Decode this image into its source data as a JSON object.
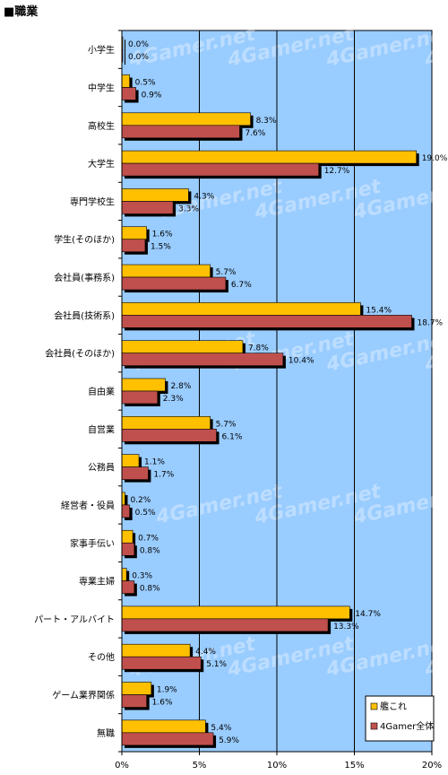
{
  "page_title": "■職業",
  "colors": {
    "plot_bg": "#99ccff",
    "series_1": "#ffc000",
    "series_2": "#c0504d",
    "shadow": "#000000",
    "grid": "#000000"
  },
  "chart_data": {
    "type": "bar",
    "orientation": "horizontal",
    "categories": [
      "小学生",
      "中学生",
      "高校生",
      "大学生",
      "専門学校生",
      "学生(そのほか)",
      "会社員(事務系)",
      "会社員(技術系)",
      "会社員(そのほか)",
      "自由業",
      "自営業",
      "公務員",
      "経営者・役員",
      "家事手伝い",
      "専業主婦",
      "パート・アルバイト",
      "その他",
      "ゲーム業界関係",
      "無職"
    ],
    "series": [
      {
        "name": "艦これ",
        "values": [
          0.0,
          0.5,
          8.3,
          19.0,
          4.3,
          1.6,
          5.7,
          15.4,
          7.8,
          2.8,
          5.7,
          1.1,
          0.2,
          0.7,
          0.3,
          14.7,
          4.4,
          1.9,
          5.4
        ],
        "labels": [
          "0.0%",
          "0.5%",
          "8.3%",
          "19.0%",
          "4.3%",
          "1.6%",
          "5.7%",
          "15.4%",
          "7.8%",
          "2.8%",
          "5.7%",
          "1.1%",
          "0.2%",
          "0.7%",
          "0.3%",
          "14.7%",
          "4.4%",
          "1.9%",
          "5.4%"
        ]
      },
      {
        "name": "4Gamer全体",
        "values": [
          0.0,
          0.9,
          7.6,
          12.7,
          3.3,
          1.5,
          6.7,
          18.7,
          10.4,
          2.3,
          6.1,
          1.7,
          0.5,
          0.8,
          0.8,
          13.3,
          5.1,
          1.6,
          5.9
        ],
        "labels": [
          "0.0%",
          "0.9%",
          "7.6%",
          "12.7%",
          "3.3%",
          "1.5%",
          "6.7%",
          "18.7%",
          "10.4%",
          "2.3%",
          "6.1%",
          "1.7%",
          "0.5%",
          "0.8%",
          "0.8%",
          "13.3%",
          "5.1%",
          "1.6%",
          "5.9%"
        ]
      }
    ],
    "x_ticks": [
      0,
      5,
      10,
      15,
      20
    ],
    "x_tick_labels": [
      "0%",
      "5%",
      "10%",
      "15%",
      "20%"
    ],
    "xlim": [
      0,
      20
    ],
    "grid": true,
    "legend_position": "bottom-right",
    "watermark": "4Gamer.net"
  }
}
